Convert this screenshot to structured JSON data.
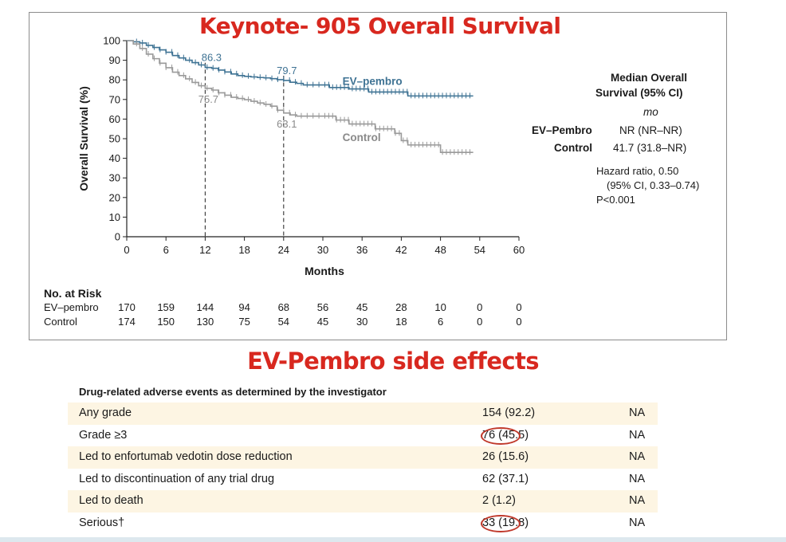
{
  "header": {
    "title": "Keynote- 905 Overall Survival"
  },
  "chart_data": {
    "type": "line",
    "subtype": "kaplan-meier",
    "xlabel": "Months",
    "ylabel": "Overall Survival (%)",
    "xlim": [
      0,
      60
    ],
    "ylim": [
      0,
      100
    ],
    "xticks": [
      0,
      6,
      12,
      18,
      24,
      30,
      36,
      42,
      48,
      54,
      60
    ],
    "yticks": [
      0,
      10,
      20,
      30,
      40,
      50,
      60,
      70,
      80,
      90,
      100
    ],
    "grid": false,
    "series": [
      {
        "name": "EV–pembro",
        "color": "#3f7394",
        "points": [
          [
            0,
            100
          ],
          [
            1,
            99.4
          ],
          [
            2,
            98.8
          ],
          [
            3,
            97.6
          ],
          [
            4,
            96.5
          ],
          [
            5,
            95.3
          ],
          [
            6,
            94.1
          ],
          [
            7,
            92.4
          ],
          [
            8,
            91.2
          ],
          [
            9,
            90
          ],
          [
            10,
            88.8
          ],
          [
            11,
            87.6
          ],
          [
            12,
            86.3
          ],
          [
            13,
            85.9
          ],
          [
            14,
            85
          ],
          [
            15,
            84
          ],
          [
            16,
            83
          ],
          [
            17,
            82.2
          ],
          [
            18,
            81.8
          ],
          [
            19,
            81.5
          ],
          [
            20,
            81.2
          ],
          [
            21,
            81
          ],
          [
            22,
            80.6
          ],
          [
            23,
            80.1
          ],
          [
            24,
            79.7
          ],
          [
            25,
            78.8
          ],
          [
            26,
            78.2
          ],
          [
            27,
            77.4
          ],
          [
            30,
            77.4
          ],
          [
            31,
            76.1
          ],
          [
            33,
            76.1
          ],
          [
            34,
            75.4
          ],
          [
            36,
            75.4
          ],
          [
            37,
            73.8
          ],
          [
            42,
            73.8
          ],
          [
            43,
            71.8
          ],
          [
            53,
            71.8
          ]
        ]
      },
      {
        "name": "Control",
        "color": "#9a9a9a",
        "points": [
          [
            0,
            100
          ],
          [
            1,
            98.3
          ],
          [
            2,
            96
          ],
          [
            3,
            93.1
          ],
          [
            4,
            90.8
          ],
          [
            5,
            88.5
          ],
          [
            6,
            86.2
          ],
          [
            7,
            83.9
          ],
          [
            8,
            82.2
          ],
          [
            9,
            80.5
          ],
          [
            10,
            78.7
          ],
          [
            11,
            77
          ],
          [
            12,
            75.7
          ],
          [
            13,
            74.8
          ],
          [
            14,
            73.4
          ],
          [
            15,
            72.2
          ],
          [
            16,
            71.1
          ],
          [
            17,
            70.5
          ],
          [
            18,
            69.9
          ],
          [
            19,
            69.1
          ],
          [
            20,
            68.2
          ],
          [
            21,
            67.5
          ],
          [
            22,
            66.6
          ],
          [
            23,
            64.5
          ],
          [
            24,
            63.1
          ],
          [
            25,
            62.1
          ],
          [
            26,
            61.5
          ],
          [
            28,
            61.5
          ],
          [
            29,
            61.5
          ],
          [
            31,
            61.5
          ],
          [
            32,
            59.5
          ],
          [
            34,
            57.5
          ],
          [
            37,
            57.5
          ],
          [
            38,
            55
          ],
          [
            41,
            52.7
          ],
          [
            42,
            49
          ],
          [
            43,
            46.8
          ],
          [
            47,
            46.8
          ],
          [
            48,
            43
          ],
          [
            53,
            43
          ]
        ]
      }
    ],
    "annotations": [
      {
        "text": "86.3",
        "x": 12,
        "y": 86.3,
        "series": "EV–pembro"
      },
      {
        "text": "79.7",
        "x": 24,
        "y": 79.7,
        "series": "EV–pembro"
      },
      {
        "text": "75.7",
        "x": 12,
        "y": 75.7,
        "series": "Control"
      },
      {
        "text": "63.1",
        "x": 24,
        "y": 63.1,
        "series": "Control"
      }
    ],
    "reference_lines_x": [
      12,
      24
    ]
  },
  "median_box": {
    "title_line1": "Median Overall",
    "title_line2": "Survival (95% CI)",
    "unit": "mo",
    "rows": [
      {
        "label": "EV–Pembro",
        "value": "NR (NR–NR)"
      },
      {
        "label": "Control",
        "value": "41.7 (31.8–NR)"
      }
    ],
    "hr_line1": "Hazard ratio, 0.50",
    "hr_line2": "(95% CI, 0.33–0.74)",
    "p_value": "P<0.001"
  },
  "risk_table": {
    "title": "No. at Risk",
    "rows": [
      {
        "label": "EV–pembro",
        "values": [
          "170",
          "159",
          "144",
          "94",
          "68",
          "56",
          "45",
          "28",
          "10",
          "0",
          "0"
        ]
      },
      {
        "label": "Control",
        "values": [
          "174",
          "150",
          "130",
          "75",
          "54",
          "45",
          "30",
          "18",
          "6",
          "0",
          "0"
        ]
      }
    ]
  },
  "side_effects": {
    "title": "EV-Pembro side effects",
    "header": "Drug-related adverse events as determined by the investigator",
    "rows": [
      {
        "label": "Any grade",
        "value": "154 (92.2)",
        "comparator": "NA"
      },
      {
        "label": "Grade ≥3",
        "value": "76 (45.5)",
        "comparator": "NA"
      },
      {
        "label": "Led to enfortumab vedotin dose reduction",
        "value": "26 (15.6)",
        "comparator": "NA"
      },
      {
        "label": "Led to discontinuation of any trial drug",
        "value": "62 (37.1)",
        "comparator": "NA"
      },
      {
        "label": "Led to death",
        "value": "2 (1.2)",
        "comparator": "NA"
      },
      {
        "label": "Serious†",
        "value": "33 (19.8)",
        "comparator": "NA"
      }
    ],
    "highlight_color": "#c0392b"
  }
}
